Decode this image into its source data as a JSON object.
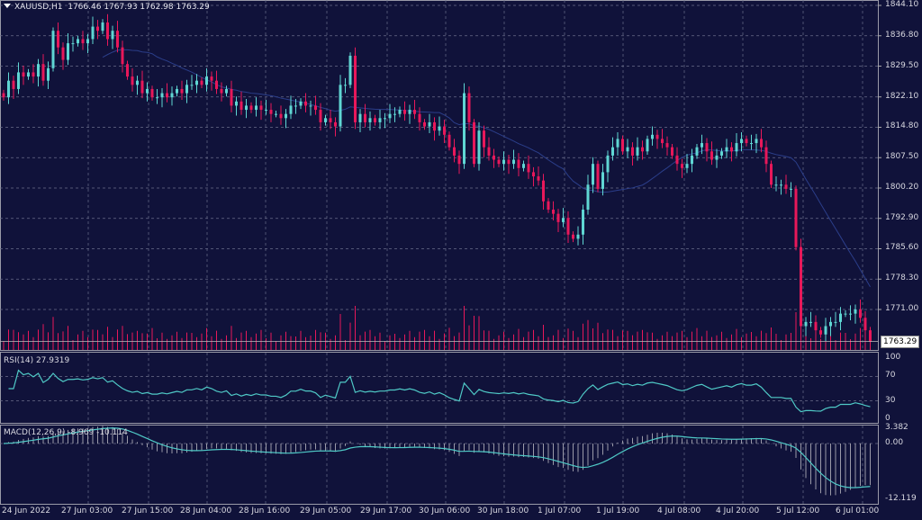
{
  "header": {
    "symbol": "XAUUSD,H1",
    "open": "1766.46",
    "high": "1767.93",
    "low": "1762.98",
    "close": "1763.29"
  },
  "colors": {
    "background": "#10123a",
    "bull": "#5fd6d3",
    "bear": "#e8185a",
    "grid": "#6a6d8a",
    "indicator": "#4fc9c6",
    "ma": "#2b3e8a"
  },
  "price_axis": {
    "ticks": [
      "1844.10",
      "1836.80",
      "1829.50",
      "1822.10",
      "1814.80",
      "1807.50",
      "1800.20",
      "1792.90",
      "1785.60",
      "1778.30",
      "1771.00"
    ],
    "current": "1763.29"
  },
  "rsi": {
    "label": "RSI(14) 27.9319",
    "ticks": [
      "100",
      "70",
      "30",
      "0"
    ]
  },
  "macd": {
    "label": "MACD(12,26,9) -8.969 -10.114",
    "ticks": [
      "3.382",
      "0.00",
      "-12.119"
    ]
  },
  "time_axis": [
    "24 Jun 2022",
    "27 Jun 03:00",
    "27 Jun 15:00",
    "28 Jun 04:00",
    "28 Jun 16:00",
    "29 Jun 05:00",
    "29 Jun 17:00",
    "30 Jun 06:00",
    "30 Jun 18:00",
    "1 Jul 07:00",
    "1 Jul 19:00",
    "4 Jul 08:00",
    "4 Jul 20:00",
    "5 Jul 12:00",
    "6 Jul 01:00"
  ],
  "chart_data": {
    "type": "candlestick",
    "timeframe": "H1",
    "ylim": [
      1763.29,
      1844.1
    ],
    "closes": [
      1822,
      1826,
      1824,
      1828,
      1827,
      1828,
      1827,
      1830,
      1826,
      1829,
      1838,
      1834,
      1831,
      1835,
      1835,
      1836,
      1835,
      1836,
      1839,
      1838,
      1840,
      1836,
      1838,
      1834,
      1830,
      1827,
      1825,
      1826,
      1823,
      1824,
      1822,
      1822,
      1823,
      1822,
      1823,
      1824,
      1823,
      1825,
      1825,
      1826,
      1825,
      1827,
      1826,
      1824,
      1823,
      1824,
      1820,
      1821,
      1819,
      1820,
      1819,
      1820,
      1819,
      1819,
      1818,
      1818,
      1817,
      1818,
      1820,
      1820,
      1821,
      1820,
      1820,
      1819,
      1816,
      1817,
      1816,
      1815,
      1825,
      1825,
      1832,
      1816,
      1818,
      1816,
      1817,
      1816,
      1817,
      1817,
      1818,
      1818,
      1819,
      1818,
      1819,
      1818,
      1816,
      1815,
      1816,
      1814,
      1815,
      1813,
      1810,
      1808,
      1806,
      1823,
      1816,
      1806,
      1814,
      1810,
      1808,
      1807,
      1806,
      1807,
      1806,
      1807,
      1805,
      1806,
      1804,
      1803,
      1802,
      1797,
      1795,
      1794,
      1792,
      1793,
      1789,
      1788,
      1789,
      1795,
      1801,
      1806,
      1800,
      1804,
      1808,
      1810,
      1812,
      1809,
      1810,
      1808,
      1810,
      1809,
      1812,
      1813,
      1812,
      1811,
      1810,
      1808,
      1806,
      1805,
      1806,
      1808,
      1810,
      1811,
      1809,
      1807,
      1808,
      1809,
      1810,
      1809,
      1811,
      1812,
      1811,
      1811,
      1812,
      1810,
      1806,
      1801,
      1801,
      1801,
      1800,
      1800,
      1786,
      1767,
      1768,
      1768,
      1766,
      1765,
      1767,
      1768,
      1768,
      1770,
      1770,
      1770,
      1771,
      1769,
      1766,
      1763.29
    ]
  }
}
